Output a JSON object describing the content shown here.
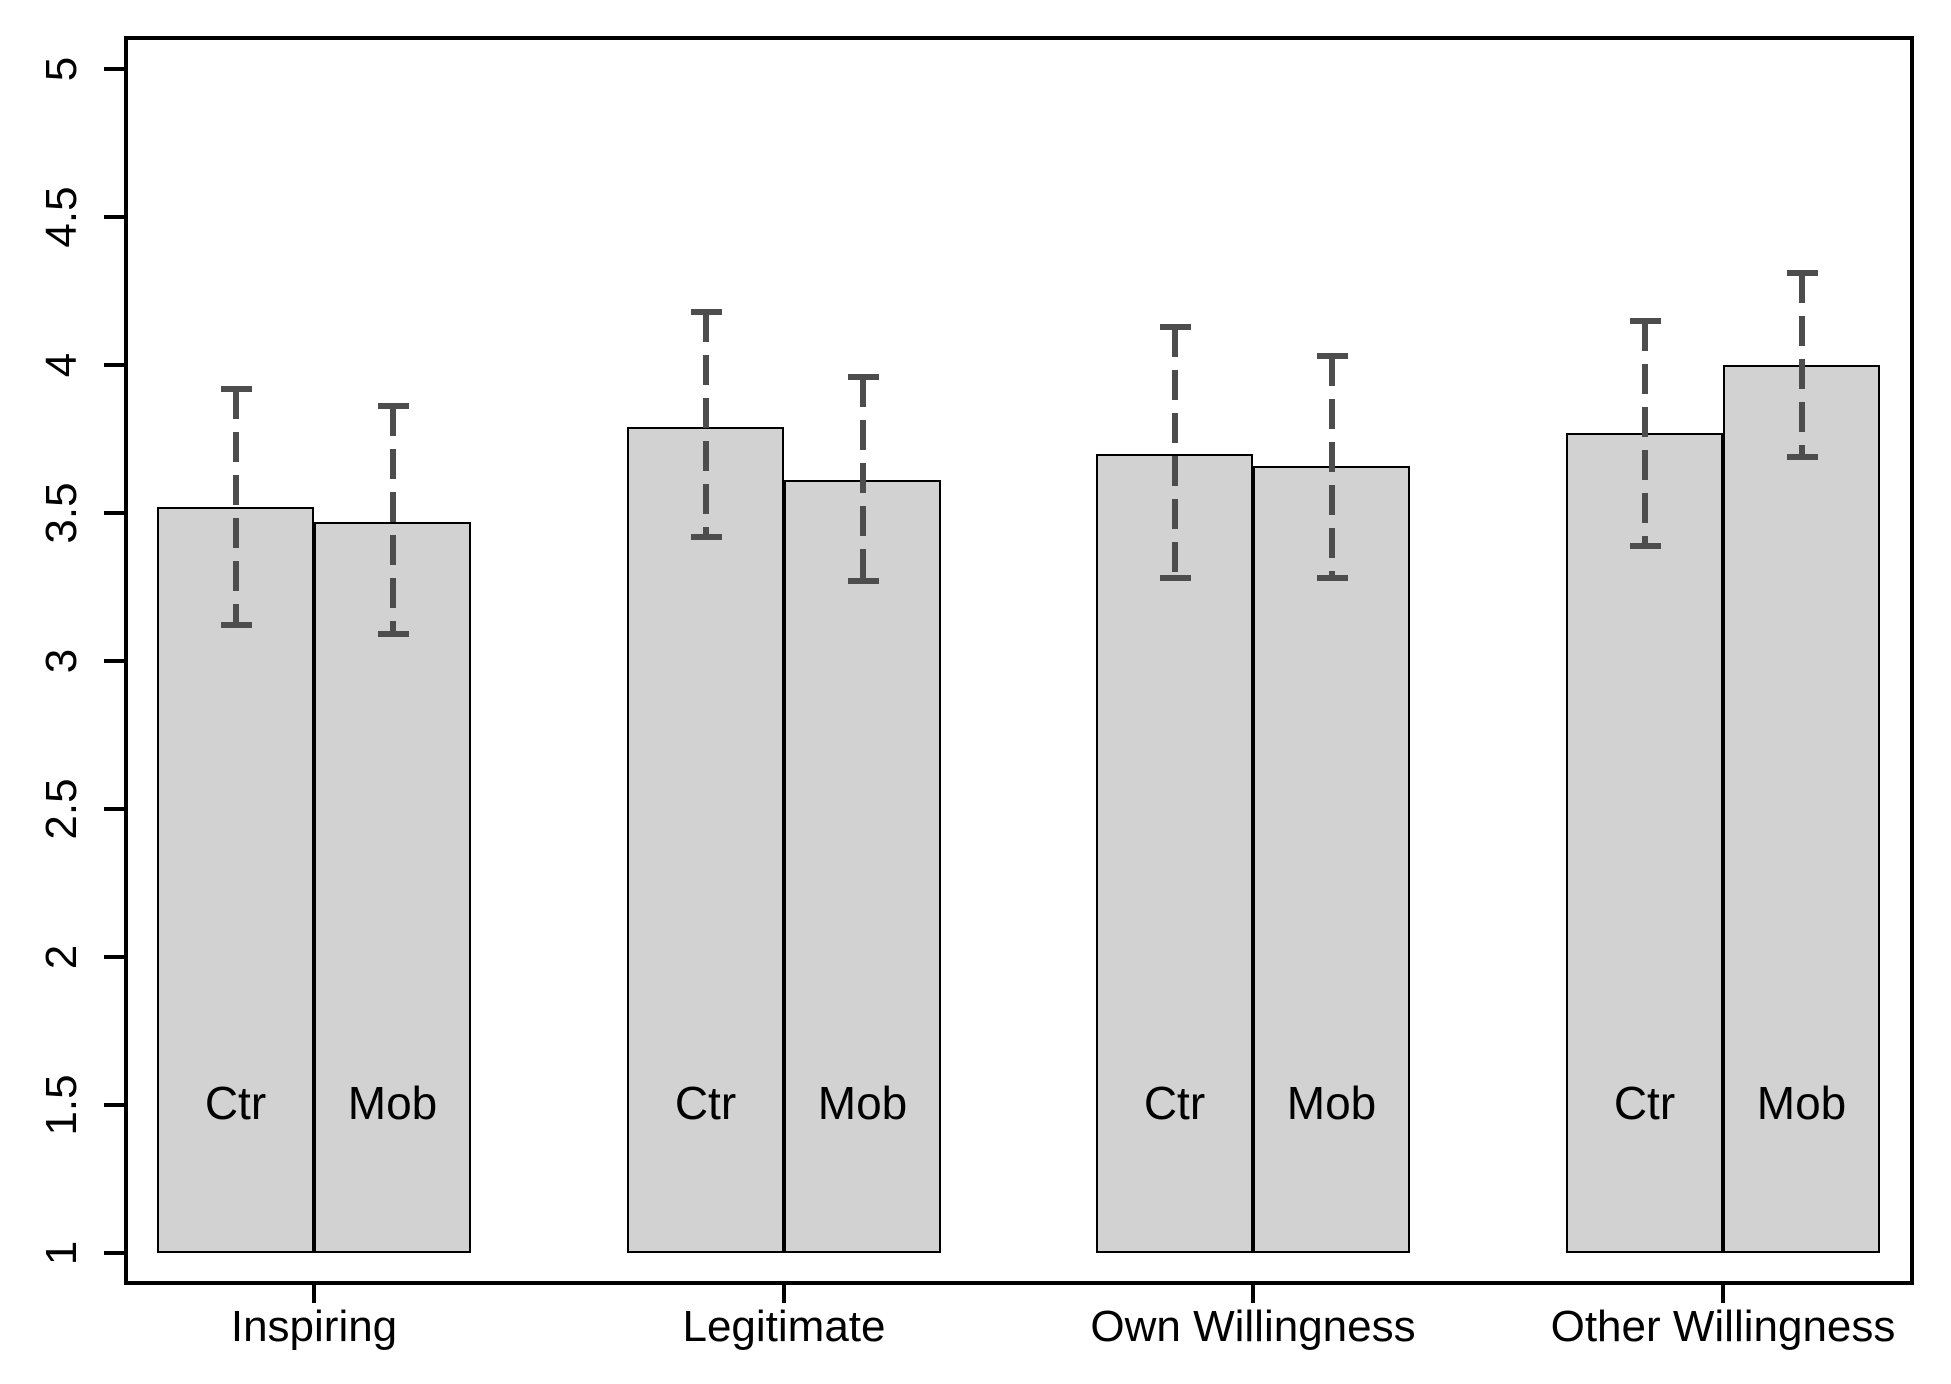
{
  "chart_data": {
    "type": "bar",
    "title": "",
    "xlabel": "",
    "ylabel": "",
    "ylim": [
      1,
      5
    ],
    "grid": false,
    "legend_position": "none",
    "bar_fill_color": "#d2d2d2",
    "bar_border_color": "#000000",
    "error_bar_color": "#4d4d4d",
    "error_bar_style": "dashed",
    "yticks": [
      "1",
      "1.5",
      "2",
      "2.5",
      "3",
      "3.5",
      "4",
      "4.5",
      "5"
    ],
    "inner_label_level": 1.5,
    "groups": [
      {
        "label": "Inspiring",
        "bars": [
          {
            "label": "Ctr",
            "value": 3.52,
            "ci_low": 3.12,
            "ci_high": 3.92
          },
          {
            "label": "Mob",
            "value": 3.47,
            "ci_low": 3.09,
            "ci_high": 3.86
          }
        ]
      },
      {
        "label": "Legitimate",
        "bars": [
          {
            "label": "Ctr",
            "value": 3.79,
            "ci_low": 3.42,
            "ci_high": 4.18
          },
          {
            "label": "Mob",
            "value": 3.61,
            "ci_low": 3.27,
            "ci_high": 3.96
          }
        ]
      },
      {
        "label": "Own Willingness",
        "bars": [
          {
            "label": "Ctr",
            "value": 3.7,
            "ci_low": 3.28,
            "ci_high": 4.13
          },
          {
            "label": "Mob",
            "value": 3.66,
            "ci_low": 3.28,
            "ci_high": 4.03
          }
        ]
      },
      {
        "label": "Other Willingness",
        "bars": [
          {
            "label": "Ctr",
            "value": 3.77,
            "ci_low": 3.39,
            "ci_high": 4.15
          },
          {
            "label": "Mob",
            "value": 4.0,
            "ci_low": 3.69,
            "ci_high": 4.31
          }
        ]
      }
    ]
  }
}
